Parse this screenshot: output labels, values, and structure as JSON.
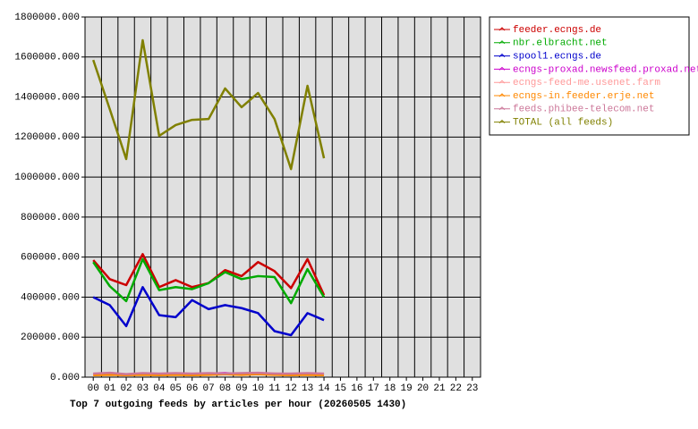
{
  "chart_data": {
    "type": "line",
    "title": "Top 7 outgoing feeds by articles per hour (20260505 1430)",
    "categories": [
      "00",
      "01",
      "02",
      "03",
      "04",
      "05",
      "06",
      "07",
      "08",
      "09",
      "10",
      "11",
      "12",
      "13",
      "14",
      "15",
      "16",
      "17",
      "18",
      "19",
      "20",
      "21",
      "22",
      "23"
    ],
    "ylim": [
      0,
      1800000
    ],
    "yticks": [
      {
        "value": 0,
        "label": "0.000"
      },
      {
        "value": 200000,
        "label": "200000.000"
      },
      {
        "value": 400000,
        "label": "400000.000"
      },
      {
        "value": 600000,
        "label": "600000.000"
      },
      {
        "value": 800000,
        "label": "800000.000"
      },
      {
        "value": 1000000,
        "label": "1000000.000"
      },
      {
        "value": 1200000,
        "label": "1200000.000"
      },
      {
        "value": 1400000,
        "label": "1400000.000"
      },
      {
        "value": 1600000,
        "label": "1600000.000"
      },
      {
        "value": 1800000,
        "label": "1800000.000"
      }
    ],
    "grid": true,
    "legend": "right",
    "series": [
      {
        "name": "feeder.ecngs.de",
        "color": "#cc0000",
        "values": [
          585000,
          490000,
          460000,
          615000,
          450000,
          485000,
          450000,
          470000,
          535000,
          505000,
          575000,
          530000,
          445000,
          590000,
          410000,
          null,
          null,
          null,
          null,
          null,
          null,
          null,
          null,
          null
        ]
      },
      {
        "name": "nbr.elbracht.net",
        "color": "#00aa00",
        "values": [
          575000,
          455000,
          380000,
          590000,
          435000,
          450000,
          440000,
          470000,
          525000,
          490000,
          505000,
          500000,
          370000,
          540000,
          400000,
          null,
          null,
          null,
          null,
          null,
          null,
          null,
          null,
          null
        ]
      },
      {
        "name": "spool1.ecngs.de",
        "color": "#0000cc",
        "values": [
          400000,
          360000,
          255000,
          450000,
          310000,
          300000,
          385000,
          340000,
          360000,
          345000,
          320000,
          230000,
          210000,
          320000,
          285000,
          null,
          null,
          null,
          null,
          null,
          null,
          null,
          null,
          null
        ]
      },
      {
        "name": "ecngs-proxad.newsfeed.proxad.net",
        "color": "#cc00cc",
        "values": [
          15000,
          15000,
          10000,
          18000,
          15000,
          18000,
          15000,
          18000,
          20000,
          15000,
          18000,
          15000,
          12000,
          15000,
          15000,
          null,
          null,
          null,
          null,
          null,
          null,
          null,
          null,
          null
        ]
      },
      {
        "name": "ecngs-feed-me.usenet.farm",
        "color": "#ff9999",
        "values": [
          12000,
          20000,
          12000,
          15000,
          12000,
          15000,
          12000,
          15000,
          15000,
          18000,
          20000,
          18000,
          15000,
          12000,
          12000,
          null,
          null,
          null,
          null,
          null,
          null,
          null,
          null,
          null
        ]
      },
      {
        "name": "ecngs-in.feeder.erje.net",
        "color": "#ff8800",
        "values": [
          10000,
          12000,
          10000,
          12000,
          10000,
          12000,
          10000,
          12000,
          15000,
          12000,
          15000,
          12000,
          10000,
          12000,
          10000,
          null,
          null,
          null,
          null,
          null,
          null,
          null,
          null,
          null
        ]
      },
      {
        "name": "feeds.phibee-telecom.net",
        "color": "#cc7799",
        "values": [
          18000,
          22000,
          15000,
          20000,
          18000,
          20000,
          18000,
          20000,
          18000,
          20000,
          22000,
          18000,
          18000,
          20000,
          18000,
          null,
          null,
          null,
          null,
          null,
          null,
          null,
          null,
          null
        ]
      },
      {
        "name": "TOTAL (all feeds)",
        "color": "#808000",
        "values": [
          1585000,
          1340000,
          1090000,
          1684000,
          1206000,
          1260000,
          1286000,
          1290000,
          1443000,
          1349000,
          1420000,
          1290000,
          1040000,
          1456000,
          1094000,
          null,
          null,
          null,
          null,
          null,
          null,
          null,
          null,
          null
        ]
      }
    ]
  }
}
